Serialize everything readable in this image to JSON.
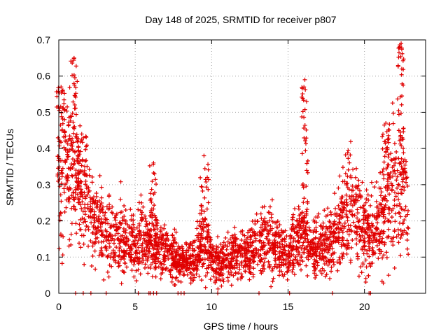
{
  "chart_data": {
    "type": "scatter",
    "title": "Day 148 of 2025, SRMTID for receiver p807",
    "xlabel": "GPS time / hours",
    "ylabel": "SRMTID / TECUs",
    "xlim": [
      0,
      24
    ],
    "ylim": [
      0,
      0.7
    ],
    "xticks": [
      0,
      5,
      10,
      15,
      20
    ],
    "xtick_labels": [
      "0",
      "5",
      "10",
      "15",
      "20"
    ],
    "yticks": [
      0,
      0.1,
      0.2,
      0.3,
      0.4,
      0.5,
      0.6,
      0.7
    ],
    "ytick_labels": [
      "0",
      "0.1",
      "0.2",
      "0.3",
      "0.4",
      "0.5",
      "0.6",
      "0.7"
    ],
    "grid": true,
    "marker": "plus",
    "series_color": "#e00000",
    "trend": [
      [
        0.0,
        0.28
      ],
      [
        0.5,
        0.36
      ],
      [
        1.0,
        0.32
      ],
      [
        1.5,
        0.26
      ],
      [
        2.0,
        0.22
      ],
      [
        2.5,
        0.2
      ],
      [
        3.0,
        0.17
      ],
      [
        3.5,
        0.15
      ],
      [
        4.0,
        0.15
      ],
      [
        4.5,
        0.14
      ],
      [
        5.0,
        0.14
      ],
      [
        5.5,
        0.15
      ],
      [
        6.0,
        0.13
      ],
      [
        6.5,
        0.12
      ],
      [
        7.0,
        0.11
      ],
      [
        7.5,
        0.1
      ],
      [
        8.0,
        0.08
      ],
      [
        8.5,
        0.09
      ],
      [
        9.0,
        0.1
      ],
      [
        9.5,
        0.14
      ],
      [
        10.0,
        0.09
      ],
      [
        10.5,
        0.08
      ],
      [
        11.0,
        0.09
      ],
      [
        11.5,
        0.1
      ],
      [
        12.0,
        0.1
      ],
      [
        12.5,
        0.11
      ],
      [
        13.0,
        0.13
      ],
      [
        13.5,
        0.15
      ],
      [
        14.0,
        0.14
      ],
      [
        14.5,
        0.11
      ],
      [
        15.0,
        0.11
      ],
      [
        15.5,
        0.14
      ],
      [
        16.0,
        0.17
      ],
      [
        16.5,
        0.12
      ],
      [
        17.0,
        0.12
      ],
      [
        17.5,
        0.13
      ],
      [
        18.0,
        0.14
      ],
      [
        18.5,
        0.2
      ],
      [
        19.0,
        0.23
      ],
      [
        19.5,
        0.22
      ],
      [
        20.0,
        0.18
      ],
      [
        20.5,
        0.16
      ],
      [
        21.0,
        0.18
      ],
      [
        21.5,
        0.26
      ],
      [
        22.0,
        0.29
      ],
      [
        22.5,
        0.3
      ],
      [
        22.9,
        0.22
      ]
    ],
    "bursts": [
      {
        "center": 0.15,
        "width": 0.3,
        "peak": 0.57
      },
      {
        "center": 1.0,
        "width": 0.3,
        "peak": 0.65
      },
      {
        "center": 1.5,
        "width": 0.3,
        "peak": 0.44
      },
      {
        "center": 6.2,
        "width": 0.25,
        "peak": 0.36
      },
      {
        "center": 9.5,
        "width": 0.3,
        "peak": 0.38
      },
      {
        "center": 16.1,
        "width": 0.2,
        "peak": 0.59
      },
      {
        "center": 21.4,
        "width": 0.25,
        "peak": 0.47
      },
      {
        "center": 22.4,
        "width": 0.2,
        "peak": 0.69
      }
    ],
    "zero_points_x": [
      1.1,
      1.6,
      2.1,
      3.1,
      5.2,
      5.9,
      6.0,
      6.2,
      6.4,
      7.8,
      8.0,
      8.2,
      10.4,
      13.1,
      15.1,
      17.9,
      20.3,
      20.4
    ]
  }
}
